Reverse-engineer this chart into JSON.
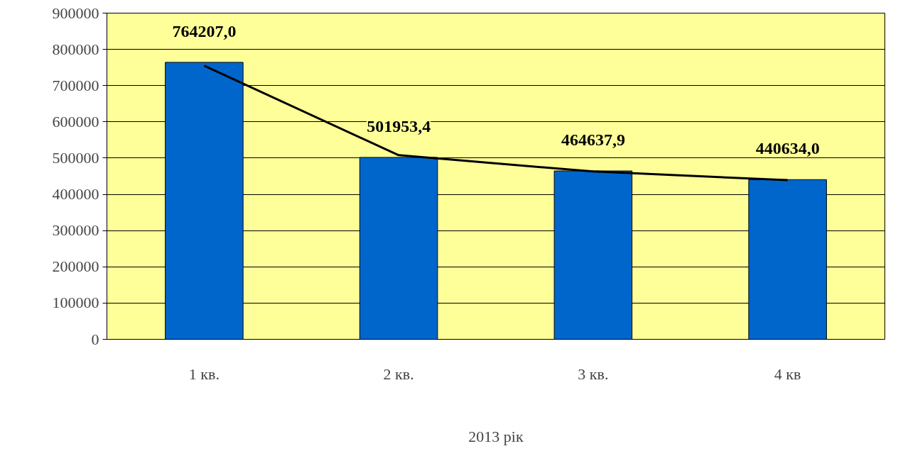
{
  "chart_data": {
    "type": "bar",
    "categories": [
      "1 кв.",
      "2 кв.",
      "3 кв.",
      "4 кв"
    ],
    "xlabel": "2013 рік",
    "series": [
      {
        "color": "#0066cc",
        "values": [
          764207.0,
          501953.4,
          464637.9,
          440634.0
        ],
        "value_labels": [
          "764207,0",
          "501953,4",
          "464637,9",
          "440634,0"
        ]
      },
      {
        "type": "line",
        "color": "#000000",
        "values": [
          755000,
          508000,
          463000,
          439000
        ]
      }
    ],
    "ylim": [
      0,
      900000
    ],
    "yticks": [
      0,
      100000,
      200000,
      300000,
      400000,
      500000,
      600000,
      700000,
      800000,
      900000
    ],
    "grid": "y"
  }
}
